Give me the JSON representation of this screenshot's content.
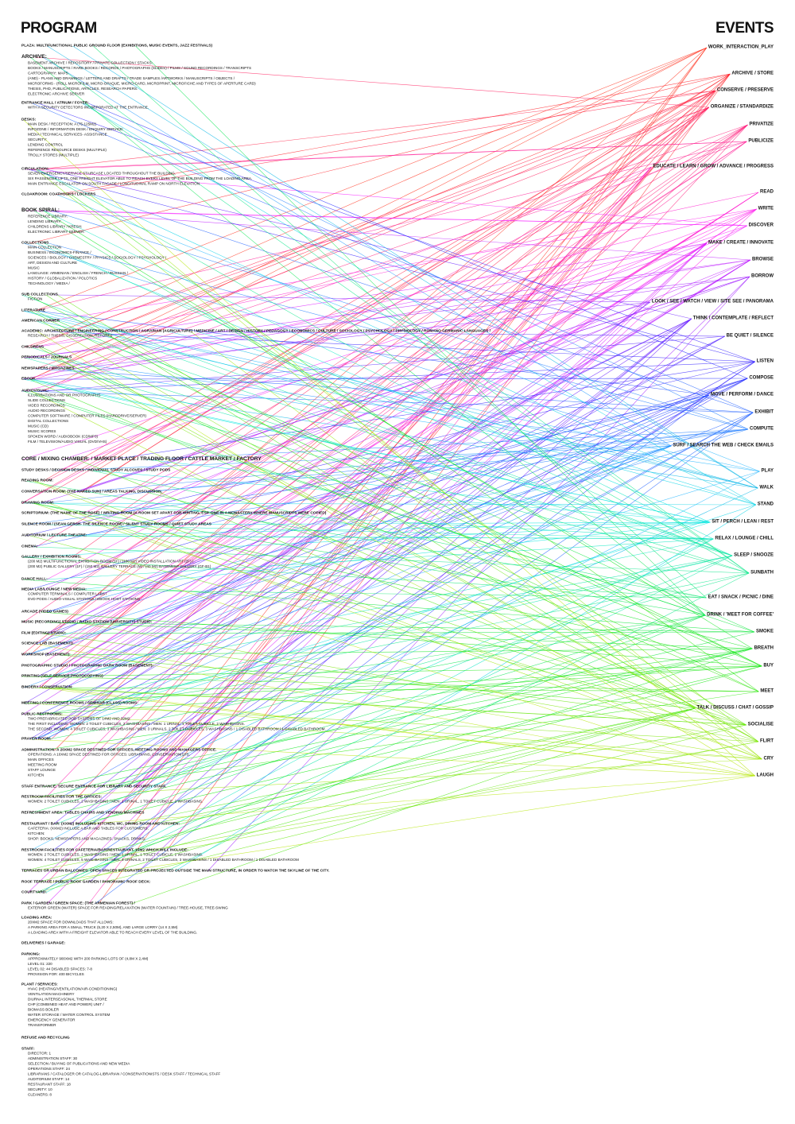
{
  "header": {
    "title_left": "PROGRAM",
    "title_right": "EVENTS"
  },
  "program": [
    {
      "lines": [
        "PLAZA: MULTIFUNCTIONAL PUBLIC GROUND FLOOR (EXHIBITIONS, MUSIC EVENTS, JAZZ FESTIVALS)"
      ]
    },
    {
      "lines": [
        "ARCHIVE:",
        "BASEMENT ARCHIVE / REPOSITORY / PRIVATE COLLECTION / STACKS:",
        "BOOKS / MANUSCRIPTS / RARE BOOKS / RECORDS / PHOTOGRAPHS (SLIDES) / FILMS / SOUND RECORDINGS / TRANSCRIPTS",
        "CARTOGRAPHY: MAPS",
        "(AND) - PLANS AND DRAWINGS / LETTERS AND DRAFTS / TRADE SAMPLES /ARTWORKS / MANUSCRIPTS / OBJECTS /",
        "MICROFORMS - (ROLL MICROFILM, MICRO-OPAQUE, MICRO-CARD, MICROPRINT, MICROFICHE AND TYPES OF APERTURE CARD)",
        "THESIS, PHD, PUBLICATIONS, ARTICLES, RESEARCH PAPERS.",
        "ELECTRONIC ARCHIVE SERVER"
      ]
    },
    {
      "lines": [
        "ENTRANCE HALL / ATRIUM / FOYER:",
        "WITH A SECURITY DETECTORS INCORPORATED AT THE ENTRANCE."
      ]
    },
    {
      "lines": [
        "DESKS:",
        "MAIN DESK / RECEPTION: A (75-125M2)",
        "INFOZONE / INFORMATION DESK / ENQUIRY SERVICE:",
        "MEDIA / TECHNICAL SERVICES- ASSISTANCE",
        "SECURITY:",
        "LENDING CONTROL",
        "REFERENCE RESOURCE DESKS (MULTIPLE)",
        "TROLLY STORES (MULTIPLE)"
      ]
    },
    {
      "lines": [
        "CIRCULATION:",
        "SEVEN EMERGENCY/SERVICE STAIRCASE LOCATED THROUGHOUT THE BUILDING.",
        "SIX PASSENGER LIFTS, ONE FREIGHT ELEVATOR ABLE TO REACH EVERY LEVEL OF THE BUILDING FROM THE LOADING AREA.",
        "MAIN ENTRANCE ESCALATOR ON SOUTH FACADE / LONGITUDINAL RAMP ON NORTH ELEVATION"
      ]
    },
    {
      "lines": [
        "CLOAKROOM: COATHOOKS / LOCKERS"
      ]
    },
    {
      "lines": [
        "BOOK SPIRAL:",
        "REFERENCE LIBRARY:",
        "LENDING LIBRARY:",
        "CHILDRENS LIBRARY / KRESH:",
        "ELECTRONIC LIBRARY SERVER:"
      ]
    },
    {
      "lines": [
        "COLLECTIONS",
        "MAIN COLLECTION",
        "BUSINESS / ECONOMICS-FINANCE /",
        "SCIENCES / BIOLOGY / CHEMESTRY / PHYSICS / SOCIOLOGY / PSYCHOLOGY /",
        "ART, DESIGN AND CULTURE",
        "MUSIC",
        "LANGUAGE: ARMENIAN / ENGLISH / FRENCH / RUSSIAN /",
        "HISTORY / GLOBALIZATION / POLOTICS",
        "TECHNOLOGY / MEDIA /"
      ]
    },
    {
      "lines": [
        "SUB COLLECTIONS",
        "FICTION"
      ]
    },
    {
      "lines": [
        "LITERATURE"
      ]
    },
    {
      "lines": [
        "AMERICAN CORNER"
      ]
    },
    {
      "lines": [
        "ACADEMIC: ARCHITECTURE / ENGINEERING / CONSTRUCTION / AGRARIAN (AGRICULTURE) / MEDICINE / ART / DESIGN / HISTORY / PEDAGOGY / ECONOMICS / CULTURE / SOCIOLOGY / PSYCHOLOGY / PHYSIOLOGY / ROMANO GERMANIC LANGUAGES /",
        "RESEARCH / THESIS, DISSERTATION, REPORTS"
      ]
    },
    {
      "lines": [
        "CHILDRENS"
      ]
    },
    {
      "lines": [
        "PERIODICALS / JOURNALS"
      ]
    },
    {
      "lines": [
        "NEWSPAPERS / MAGAZINES"
      ]
    },
    {
      "lines": [
        "EBOOK"
      ]
    },
    {
      "lines": [
        "AUDIOVISUAL:",
        "ILLUSTRATIONS AND OR PHOTOGRAPHS",
        "SLIDE COLLECTIONS",
        "VIDEO RECORDINGS",
        "AUDIO RECORDINGS",
        "COMPUTER SOFTWARE / COMPUTER FILES (HARDDRIVE/SERVER)",
        "DIGITAL COLLECTIONS",
        "MUSIC (CD)",
        "MUSIC SCORES",
        "SPOKEN WORD / AUDIOBOOK (CD/MP3)",
        "FILM / TELEVISION/AUDIO VISUAL (DVD/VHS)"
      ]
    },
    {
      "lines": [
        "CORE / MIXING CHAMBER: / MARKET PLACE / TRADING FLOOR / CATTLE MARKET / FACTORY"
      ]
    },
    {
      "lines": [
        "STUDY DESKS / DECISION DESKS / INDIVIDUAL STUDY ALCOVES / STUDY PODS"
      ]
    },
    {
      "lines": [
        "READING ROOM:"
      ]
    },
    {
      "lines": [
        "CONVERSATION ROOM: (THE NAKED SUN) / AREAS TALKING, DISCUSSION,"
      ]
    },
    {
      "lines": [
        "DRAWING ROOM:"
      ]
    },
    {
      "lines": [
        "SCRIPTORIUM: (THE NAME OF THE ROSE) / WRITING ROOM (A ROOM SET APART FOR WRITING, ESP. ONE IN A MONASTERY WHERE MANUSCRIPTS WERE COPIED)"
      ]
    },
    {
      "lines": [
        "SILENCE ROOM / (SEAN GERSH- THE SILENCE ROOM) / SILENT STUDY ROOMS / QUIET STUDY AREAS"
      ]
    },
    {
      "lines": [
        "AUDITORIUM / LECTURE THEATRE:"
      ]
    },
    {
      "lines": [
        "CINEMA:"
      ]
    },
    {
      "lines": [
        "GALLERY / EXHIBITION ROOMS:",
        "(200 M2) MULTIFUNCTIONAL EXHIBITION ROOM (1F) / (100 M2) VIDEO INSTALLATION ART (2F) /",
        "(200 M2) PUBLIC GALLERY (1F) / (150 M2) GALLERY TERRACE (M) / (40 M2) BASEMENT GALLERY (GF-B1)"
      ]
    },
    {
      "lines": [
        "DANCE HALL:"
      ]
    },
    {
      "lines": [
        "MEDIA LAB/LOUNGE / NEW MEDIA:",
        "COMPUTER TERMINALS / COMPUTER LABS /",
        "DVD PODS / AUDIO-VISUAL STATIONS / EBOOK HOST STATIONS"
      ]
    },
    {
      "lines": [
        "ARCADE (VIDEO GAMES)"
      ]
    },
    {
      "lines": [
        "MUSIC (RECORDING) STUDIO / RADIO STATION (UNIVERSITY) STUDIO:"
      ]
    },
    {
      "lines": [
        "FILM (EDITING) STUDIO:"
      ]
    },
    {
      "lines": [
        "SCIENCE LAB (BASEMENT):"
      ]
    },
    {
      "lines": [
        "WORKSHOP (BASEMENT):"
      ]
    },
    {
      "lines": [
        "PHOTOGRAPHIC STUDIO / PHOTOGRAPHIC DARK ROOM (BASEMENT):"
      ]
    },
    {
      "lines": [
        "PRINTING (SELF-SERVICE PHOTOCOPYING)"
      ]
    },
    {
      "lines": [
        "BINDERY / CONSERVATION:"
      ]
    },
    {
      "lines": [
        "MEETING / CONFERENCE ROOMS / SEMINAR (CLASS) ROOMS:"
      ]
    },
    {
      "lines": [
        "PUBLIC RESTROOMS:",
        "TWO PREFABRICATED POD SYSTEMS OF 14M2 AND 32M2.",
        "THE FIRST INCLUDING: WOMEN: 2 TOILET CUBICLES, 2 WASHBASINS / MEN: 1 URINAL, 1 TOILET CUBICLE, 2 WASHBASINS.",
        "THE SECOND: WOMEN: 4 TOILET CUBICLES, 3 WASHBASINS / MEN: 3 URINALS, 2 TOILET CUBICLES, 3 WASHBASINS / 1 DISABLED BATHROOM / 1 DISABLED BATHROOM."
      ]
    },
    {
      "lines": [
        "PRAYER ROOM:"
      ]
    },
    {
      "lines": [
        "ADMINISTRATION: A 20XM2 SPACE DESTINED FOR OFFICES, MEETING ROOMS AND MANAGERS OFFICE.",
        "OPERATIONS: A 10XM2 SPACE DESTINED FOR OFFICES: LIBRARIANS, CONSERVATIONISTS,",
        "MAIN OFFICES",
        "MEETING ROOM",
        "STAFF LOUNGE",
        "KITCHEN"
      ]
    },
    {
      "lines": [
        "STAFF ENTRANCE: SECURE ENTRANCE FOR LIBRARY AND SECURITY STAFF."
      ]
    },
    {
      "lines": [
        "RESTROOM FACILITIES FOR THE OFFICES:",
        "WOMEN: 2 TOILET CUBICLES, 2 WASHBASINS / MEN: 1 URINAL, 1 TOILET CUBICLE, 2 WASHBASINS."
      ]
    },
    {
      "lines": [
        "REFRESHMENT AREA: TABLES CHAIRS AND VENDING MACHINES"
      ]
    },
    {
      "lines": [
        "RESTAURANT / BAR: (XXM2) INCLUDING KITCHEN, WC, DINING ROOM AND KITCHEN:",
        "CAFETERIA: (XXM2) INCLUDE A BAR AND TABLES FOR CUSTOMERS.",
        "KITCHEN:",
        "SHOP: BOOKS, NEWSPAPERS AND MAGAZINES, SNACKS, DRINKS."
      ]
    },
    {
      "lines": [
        "RESTROOM FACILITIES FOR CAFETERIA/BAR/RESTAURANT, 15M2 WHICH WILL INCLUDE:",
        "WOMEN: 2 TOILET CUBICLES, 2 WASHBASINS / MEN: 1 URINAL, 1 TOILET CUBICLE, 2 WASHBASINS.",
        "WOMEN: 4 TOILET CUBICLES, 5 WASHBASINS / MEN: 3 URINALS, 2 TOILET CUBICLES, 3 WASHBASINS / 1 DISABLED BATHROOM / 1 DISABLED BATHROOM"
      ]
    },
    {
      "lines": [
        "TERRACES OR URBAN BALCONIES: OPEN SPACES INTEGRATED OR PROJECTED OUTSIDE THE MAIN STRUCTURE, IN ORDER TO WATCH THE SKYLINE OF THE CITY."
      ]
    },
    {
      "lines": [
        "ROOF TERRACE / PUBLIC ROOF GARDEN / PANORAMIC ROOF DECK:"
      ]
    },
    {
      "lines": [
        "COURTYARD:"
      ]
    },
    {
      "lines": [
        "PARK / GARDEN / GREEN SPACE: (THE ARMENIAN FOREST) /",
        "EXTERIOR GREEN (WATER) SPACE FOR READING/RELAXATION (WATER FOUNTAIN) / TREE-HOUSE, TREE-SWING"
      ]
    },
    {
      "lines": [
        "LOADING AREA:",
        "20XM2 SPACE FOR DOWNLOADS THAT ALLOWS:",
        "A PARKING AREA FOR A SMALL TRUCK (5,20 X 2,50M), AND LARGE LORRY (14 X 2,5M)",
        "A LOADING AREA WITH A FREIGHT ELEVATOR ABLE TO REACH EVERY LEVEL OF THE BUILDING."
      ]
    },
    {
      "lines": [
        "DELIVERIES / GARAGE:"
      ]
    },
    {
      "lines": [
        "PARKING:",
        "APPROXIMATELY 900XM2 WITH 200 PARKING LOTS OF (4,8M X 2,4M)",
        "LEVEL 01: 220",
        "LEVEL 02: 44 DISABLED SPACES: 7-8",
        "PROVISION FOR: 400 BICYCLES"
      ]
    },
    {
      "lines": [
        "PLANT / SERVICES:",
        "HVAC (HEATING/VENTILATION/AIR-CONDITIONING)",
        "VENTILATION MACHINERY",
        "DIURNAL INTERSEASONAL THERMAL STORE",
        "CHP (COMBINED HEAT AND POWER) UNIT /",
        "BIOMASS BOILER",
        "WATER STORAGE / WATER CONTROL SYSTEM",
        "EMERGENCY GENERATOR",
        "TRANSFORMER"
      ]
    },
    {
      "lines": [
        "REFUSE AND RECYCLING"
      ]
    },
    {
      "lines": [
        "STAFF:",
        "DIRECTOR: 1",
        "ADMINISTRATION STAFF: 30",
        "SELECTION / BUYING OF PUBLICATIONS AND NEW MEDIA",
        "OPERATIONS STAFF: 24",
        "LIBRARIANS / CATALOGER OR CATALOG-LIBRARIAN / CONSERVATIONISTS / DESK STAFF / TECHNICAL STAFF",
        "AUDITORIUM STAFF: 14",
        "RESTAURANT STAFF: 18",
        "SECURITY: 10",
        "CLEANERS: 8"
      ]
    }
  ],
  "events": [
    "WORK_INTERACTION_PLAY",
    "ARCHIVE / STORE",
    "CONSERVE / PRESERVE",
    "ORGANIZE / STANDARDIZE",
    "PRIVATIZE",
    "PUBLICIZE",
    "EDUCATE / LEARN / GROW / ADVANCE / PROGRESS",
    "READ",
    "WRITE",
    "DISCOVER",
    "MAKE / CREATE / INNOVATE",
    "BROWSE",
    "BORROW",
    "LOOK / SEE / WATCH / VIEW / SITE SEE / PANORAMA",
    "THINK / CONTEMPLATE / REFLECT",
    "BE QUIET / SILENCE",
    "LISTEN",
    "COMPOSE",
    "MOVE / PERFORM / DANCE",
    "EXHIBIT",
    "COMPUTE",
    "SURF / SEARCH THE WEB / CHECK EMAILS",
    "PLAY",
    "WALK",
    "STAND",
    "SIT / PERCH / LEAN / REST",
    "RELAX / LOUNGE / CHILL",
    "SLEEP / SNOOZE",
    "SUNBATH",
    "EAT / SNACK / PICNIC / DINE",
    "DRINK / 'MEET FOR COFFEE'",
    "SMOKE",
    "BREATH",
    "BUY",
    "MEET",
    "TALK / DISCUSS / CHAT / GOSSIP",
    "SOCIALISE",
    "FLIRT",
    "CRY",
    "LAUGH"
  ]
}
